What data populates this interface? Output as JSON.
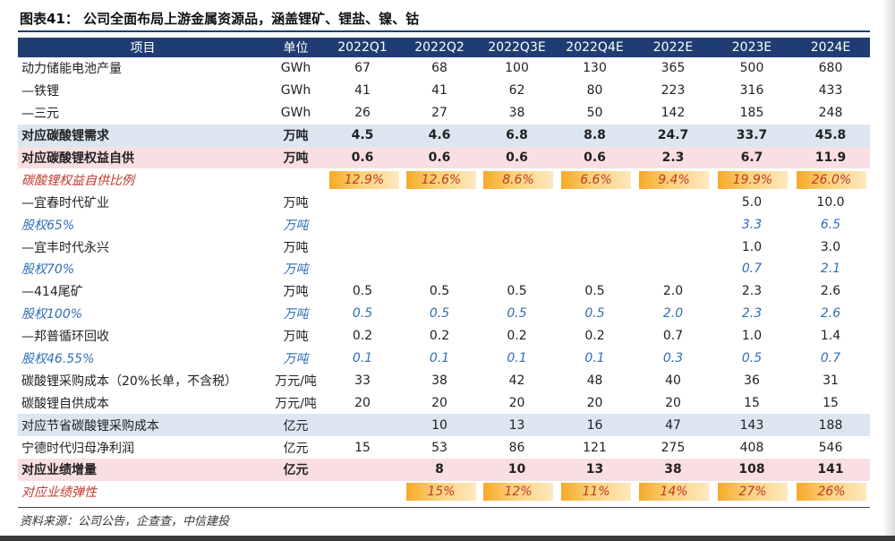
{
  "title": "图表41：   公司全面布局上游金属资源品，涵盖锂矿、锂盐、镍、钴",
  "source": "资料来源：公司公告，企查查，中信建投",
  "headers": [
    "项目",
    "单位",
    "2022Q1",
    "2022Q2",
    "2022Q3E",
    "2022Q4E",
    "2022E",
    "2023E",
    "2024E"
  ],
  "rows": [
    {
      "style": "",
      "cells": [
        "动力储能电池产量",
        "GWh",
        "67",
        "68",
        "100",
        "130",
        "365",
        "500",
        "680"
      ]
    },
    {
      "style": "",
      "cells": [
        "—铁锂",
        "GWh",
        "41",
        "41",
        "62",
        "80",
        "223",
        "316",
        "433"
      ]
    },
    {
      "style": "",
      "cells": [
        "—三元",
        "GWh",
        "26",
        "27",
        "38",
        "50",
        "142",
        "185",
        "248"
      ]
    },
    {
      "style": "blue bold",
      "cells": [
        "对应碳酸锂需求",
        "万吨",
        "4.5",
        "4.6",
        "6.8",
        "8.8",
        "24.7",
        "33.7",
        "45.8"
      ]
    },
    {
      "style": "pink bold",
      "cells": [
        "对应碳酸锂权益自供",
        "万吨",
        "0.6",
        "0.6",
        "0.6",
        "0.6",
        "2.3",
        "6.7",
        "11.9"
      ]
    },
    {
      "style": "italic-red",
      "highlight": true,
      "cells": [
        "碳酸锂权益自供比例",
        "",
        "12.9%",
        "12.6%",
        "8.6%",
        "6.6%",
        "9.4%",
        "19.9%",
        "26.0%"
      ]
    },
    {
      "style": "",
      "cells": [
        "—宜春时代矿业",
        "万吨",
        "",
        "",
        "",
        "",
        "",
        "5.0",
        "10.0"
      ]
    },
    {
      "style": "italic-blue",
      "cells": [
        "股权65%",
        "万吨",
        "",
        "",
        "",
        "",
        "",
        "3.3",
        "6.5"
      ]
    },
    {
      "style": "",
      "cells": [
        "—宜丰时代永兴",
        "万吨",
        "",
        "",
        "",
        "",
        "",
        "1.0",
        "3.0"
      ]
    },
    {
      "style": "italic-blue",
      "cells": [
        "股权70%",
        "万吨",
        "",
        "",
        "",
        "",
        "",
        "0.7",
        "2.1"
      ]
    },
    {
      "style": "",
      "cells": [
        "—414尾矿",
        "万吨",
        "0.5",
        "0.5",
        "0.5",
        "0.5",
        "2.0",
        "2.3",
        "2.6"
      ]
    },
    {
      "style": "italic-blue",
      "cells": [
        "股权100%",
        "万吨",
        "0.5",
        "0.5",
        "0.5",
        "0.5",
        "2.0",
        "2.3",
        "2.6"
      ]
    },
    {
      "style": "",
      "cells": [
        "—邦普循环回收",
        "万吨",
        "0.2",
        "0.2",
        "0.2",
        "0.2",
        "0.7",
        "1.0",
        "1.4"
      ]
    },
    {
      "style": "italic-blue",
      "cells": [
        "股权46.55%",
        "万吨",
        "0.1",
        "0.1",
        "0.1",
        "0.1",
        "0.3",
        "0.5",
        "0.7"
      ]
    },
    {
      "style": "",
      "cells": [
        "碳酸锂采购成本（20%长单，不含税）",
        "万元/吨",
        "33",
        "38",
        "42",
        "48",
        "40",
        "36",
        "31"
      ]
    },
    {
      "style": "",
      "cells": [
        "碳酸锂自供成本",
        "万元/吨",
        "20",
        "20",
        "20",
        "20",
        "20",
        "15",
        "15"
      ]
    },
    {
      "style": "blue",
      "cells": [
        "对应节省碳酸锂采购成本",
        "亿元",
        "",
        "10",
        "13",
        "16",
        "47",
        "143",
        "188"
      ]
    },
    {
      "style": "",
      "cells": [
        "宁德时代归母净利润",
        "亿元",
        "15",
        "53",
        "86",
        "121",
        "275",
        "408",
        "546"
      ]
    },
    {
      "style": "pink bold",
      "cells": [
        "对应业绩增量",
        "亿元",
        "",
        "8",
        "10",
        "13",
        "38",
        "108",
        "141"
      ]
    },
    {
      "style": "italic-red",
      "highlight": true,
      "cells": [
        "对应业绩弹性",
        "",
        "",
        "15%",
        "12%",
        "11%",
        "14%",
        "27%",
        "26%"
      ]
    }
  ]
}
